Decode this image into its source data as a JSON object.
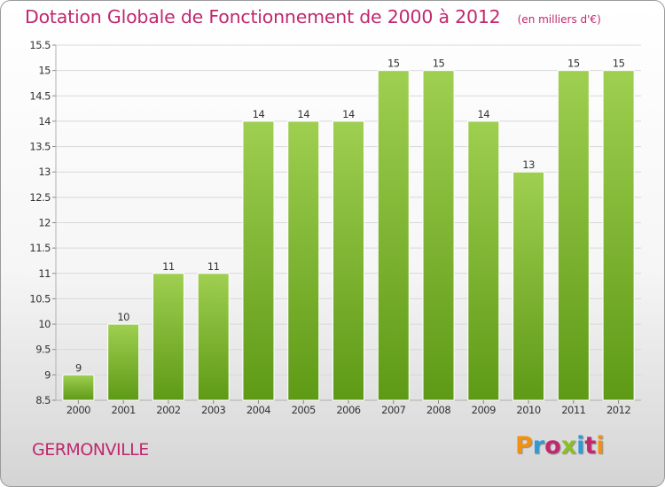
{
  "header": {
    "title": "Dotation Globale de Fonctionnement de 2000 à 2012",
    "unit": "(en milliers d'€)"
  },
  "footer": {
    "commune": "GERMONVILLE",
    "logo_text": "Proxiti",
    "logo_colors": [
      "#f29111",
      "#2f9ad6",
      "#c0286f",
      "#8bbf26",
      "#2f9ad6",
      "#c0286f",
      "#f29111"
    ]
  },
  "colors": {
    "title": "#c0286f",
    "bar_top": "#9fcf50",
    "bar_bottom": "#5e9a16",
    "grid": "#d8d8d8",
    "axis_text": "#333333"
  },
  "chart_data": {
    "type": "bar",
    "categories": [
      "2000",
      "2001",
      "2002",
      "2003",
      "2004",
      "2005",
      "2006",
      "2007",
      "2008",
      "2009",
      "2010",
      "2011",
      "2012"
    ],
    "values": [
      9,
      10,
      11,
      11,
      14,
      14,
      14,
      15,
      15,
      14,
      13,
      15,
      15
    ],
    "data_labels": [
      "9",
      "10",
      "11",
      "11",
      "14",
      "14",
      "14",
      "15",
      "15",
      "14",
      "13",
      "15",
      "15"
    ],
    "y_ticks": [
      "8.5",
      "9",
      "9.5",
      "10",
      "10.5",
      "11",
      "11.5",
      "12",
      "12.5",
      "13",
      "13.5",
      "14",
      "14.5",
      "15",
      "15.5"
    ],
    "ylim": [
      8.5,
      15.5
    ],
    "grid": true,
    "title": "Dotation Globale de Fonctionnement de 2000 à 2012",
    "xlabel": "",
    "ylabel": ""
  }
}
